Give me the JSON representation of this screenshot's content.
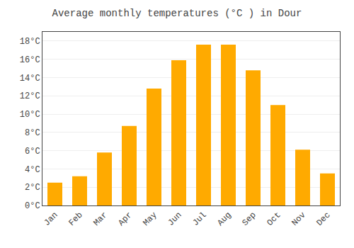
{
  "chart_data": {
    "type": "bar",
    "title": "Average monthly temperatures (°C ) in Dour",
    "categories": [
      "Jan",
      "Feb",
      "Mar",
      "Apr",
      "May",
      "Jun",
      "Jul",
      "Aug",
      "Sep",
      "Oct",
      "Nov",
      "Dec"
    ],
    "values": [
      2.5,
      3.2,
      5.8,
      8.7,
      12.8,
      15.9,
      17.6,
      17.6,
      14.8,
      11.0,
      6.1,
      3.5
    ],
    "color": "#FFAA00",
    "ylim": [
      0,
      19
    ],
    "yticks": [
      {
        "value": 0,
        "label": "0°C"
      },
      {
        "value": 2,
        "label": "2°C"
      },
      {
        "value": 4,
        "label": "4°C"
      },
      {
        "value": 6,
        "label": "6°C"
      },
      {
        "value": 8,
        "label": "8°C"
      },
      {
        "value": 10,
        "label": "10°C"
      },
      {
        "value": 12,
        "label": "12°C"
      },
      {
        "value": 14,
        "label": "14°C"
      },
      {
        "value": 16,
        "label": "16°C"
      },
      {
        "value": 18,
        "label": "18°C"
      }
    ],
    "grid": true
  }
}
